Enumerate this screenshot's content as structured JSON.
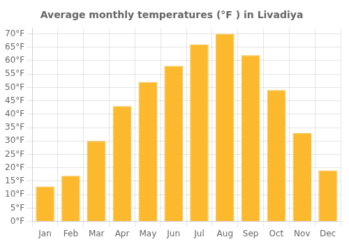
{
  "chart_data": {
    "type": "bar",
    "title": "Average monthly temperatures (°F ) in Livadiya",
    "categories": [
      "Jan",
      "Feb",
      "Mar",
      "Apr",
      "May",
      "Jun",
      "Jul",
      "Aug",
      "Sep",
      "Oct",
      "Nov",
      "Dec"
    ],
    "values": [
      13,
      17,
      30,
      43,
      52,
      58,
      66,
      70,
      62,
      49,
      33,
      19
    ],
    "color": "#FDB92E",
    "ylim": [
      0,
      72
    ],
    "yticks": [
      {
        "value": 0,
        "label": "0°F"
      },
      {
        "value": 5,
        "label": "5°F"
      },
      {
        "value": 10,
        "label": "10°F"
      },
      {
        "value": 15,
        "label": "15°F"
      },
      {
        "value": 20,
        "label": "20°F"
      },
      {
        "value": 25,
        "label": "25°F"
      },
      {
        "value": 30,
        "label": "30°F"
      },
      {
        "value": 35,
        "label": "35°F"
      },
      {
        "value": 40,
        "label": "40°F"
      },
      {
        "value": 45,
        "label": "45°F"
      },
      {
        "value": 50,
        "label": "50°F"
      },
      {
        "value": 55,
        "label": "55°F"
      },
      {
        "value": 60,
        "label": "60°F"
      },
      {
        "value": 65,
        "label": "65°F"
      },
      {
        "value": 70,
        "label": "70°F"
      }
    ],
    "grid": true
  }
}
